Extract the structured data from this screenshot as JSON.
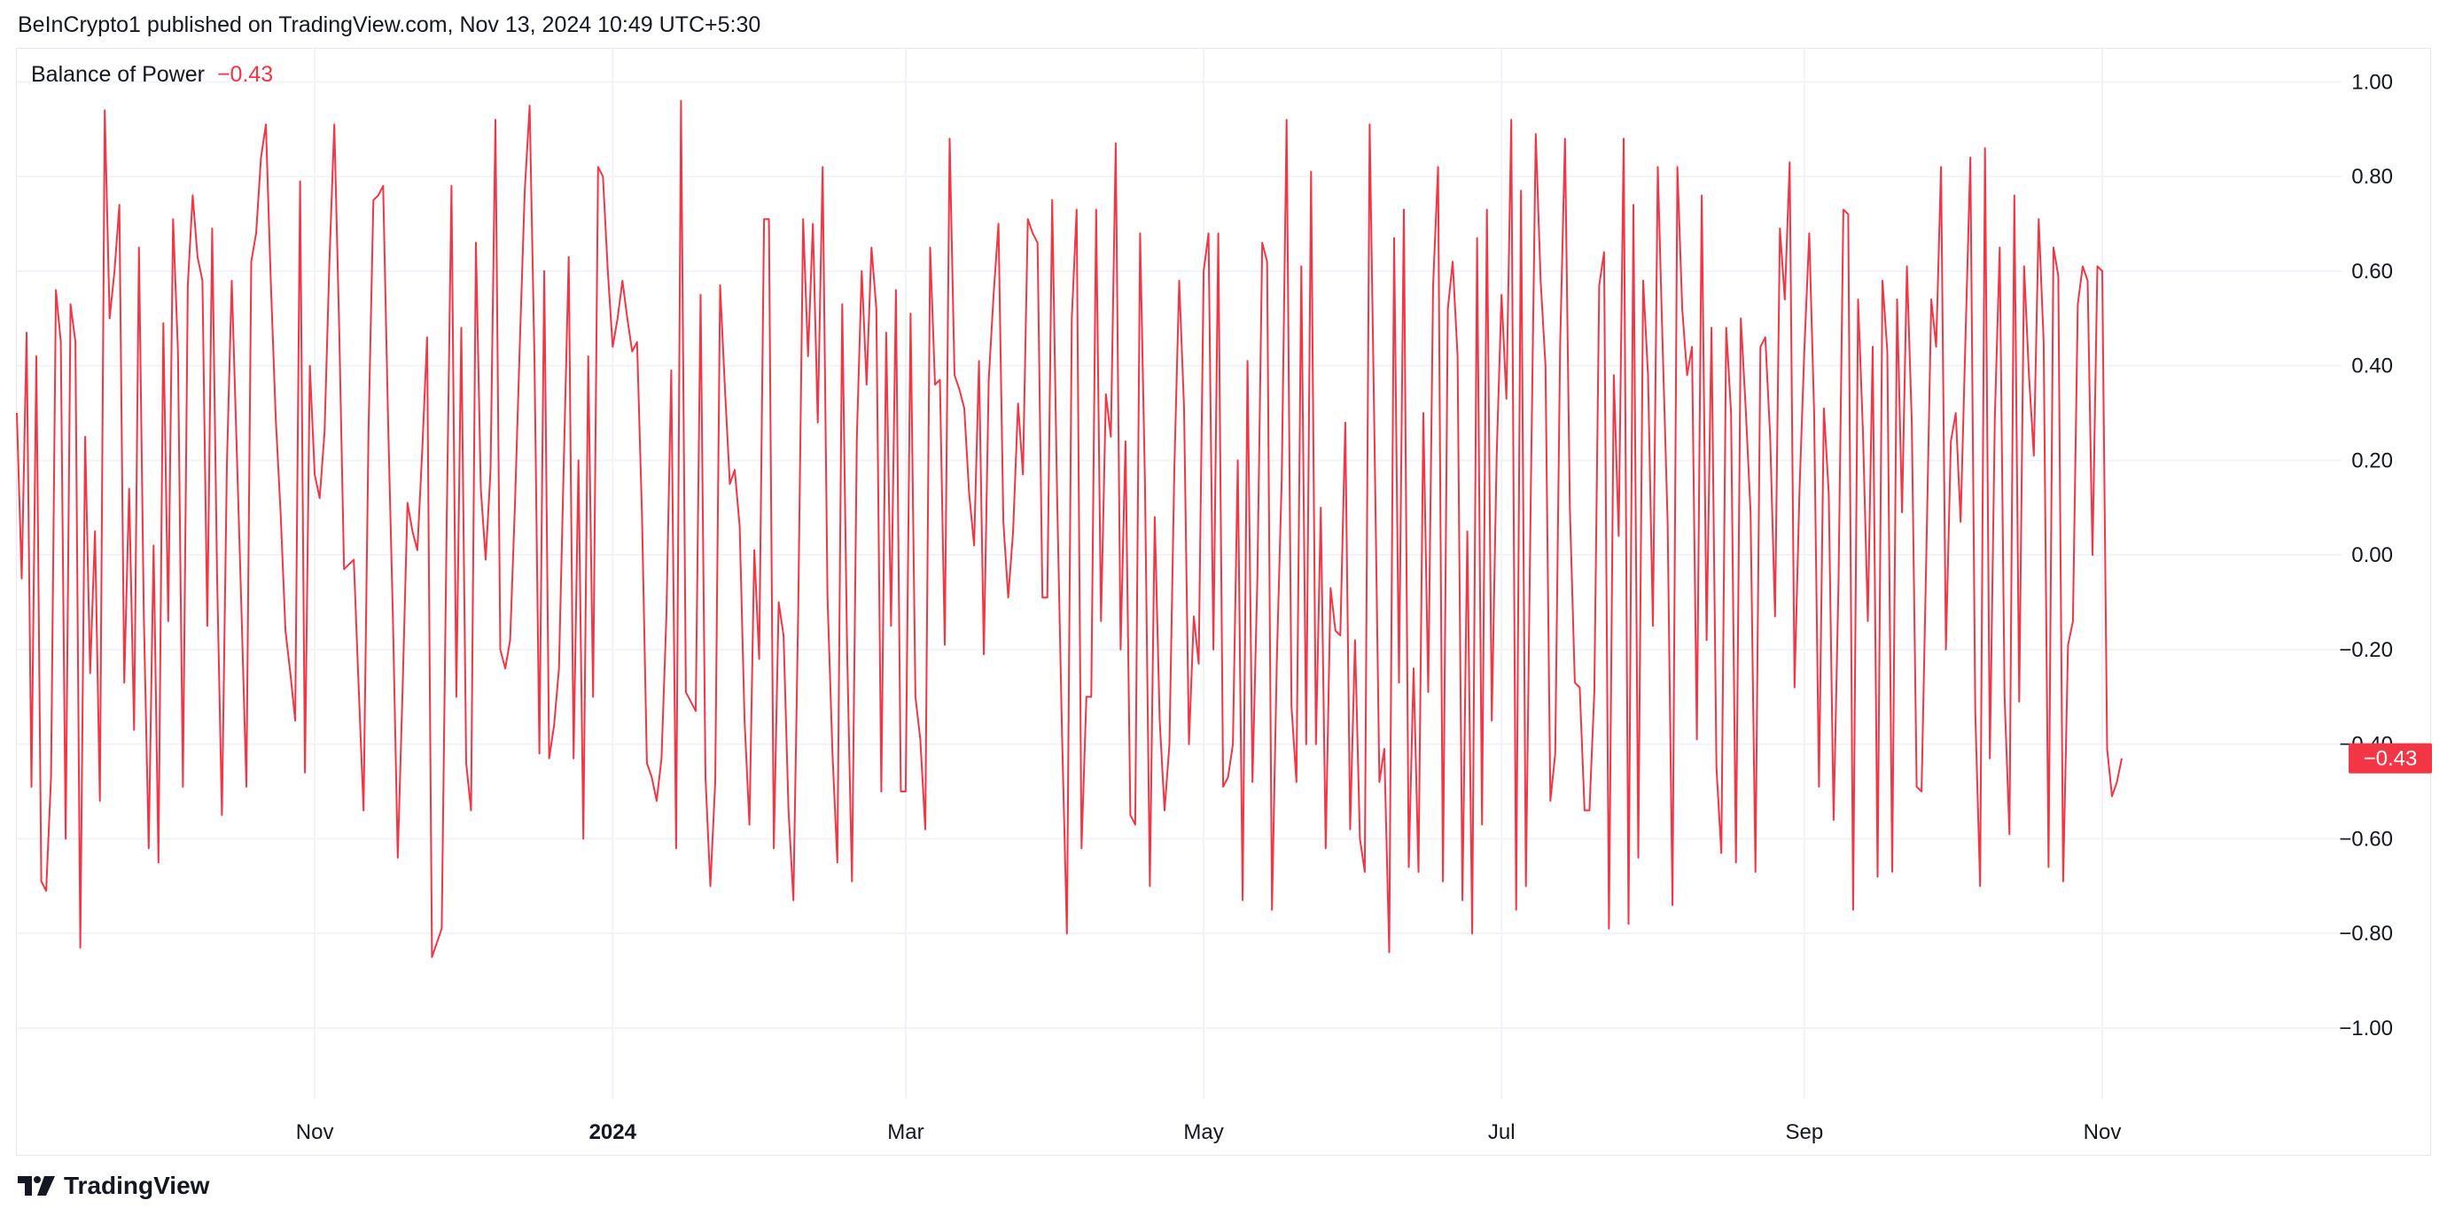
{
  "header": {
    "publisher_line": "BeInCrypto1 published on TradingView.com, Nov 13, 2024 10:49 UTC+5:30"
  },
  "indicator": {
    "name": "Balance of Power",
    "value": "−0.43"
  },
  "footer": {
    "brand": "TradingView",
    "logo_icon": "tradingview-logo-icon"
  },
  "colors": {
    "series": "#f23645",
    "grid": "#f0f3fa",
    "axis_text": "#131722",
    "badge_bg": "#f23645"
  },
  "chart_data": {
    "type": "line",
    "title": "Balance of Power",
    "ylim": [
      -1.15,
      1.07
    ],
    "y_ticks": [
      1.0,
      0.8,
      0.6,
      0.4,
      0.2,
      0.0,
      -0.2,
      -0.4,
      -0.6,
      -0.8,
      -1.0
    ],
    "y_tick_labels": [
      "1.00",
      "0.80",
      "0.60",
      "0.40",
      "0.20",
      "0.00",
      "−0.20",
      "−0.40",
      "−0.60",
      "−0.80",
      "−1.00"
    ],
    "x_range": [
      "2023-09-01",
      "2024-12-20"
    ],
    "x_ticks": [
      {
        "date": "2023-11-01",
        "label": "Nov",
        "bold": false
      },
      {
        "date": "2024-01-01",
        "label": "2024",
        "bold": true
      },
      {
        "date": "2024-03-01",
        "label": "Mar",
        "bold": false
      },
      {
        "date": "2024-05-01",
        "label": "May",
        "bold": false
      },
      {
        "date": "2024-07-01",
        "label": "Jul",
        "bold": false
      },
      {
        "date": "2024-09-01",
        "label": "Sep",
        "bold": false
      },
      {
        "date": "2024-11-01",
        "label": "Nov",
        "bold": false
      }
    ],
    "grid": true,
    "last_value_label": "−0.43",
    "series": [
      {
        "start_date": "2023-09-01",
        "step_days": 1,
        "values": [
          0.3,
          -0.05,
          0.47,
          -0.49,
          0.42,
          -0.69,
          -0.71,
          -0.47,
          0.56,
          0.45,
          -0.6,
          0.53,
          0.45,
          -0.83,
          0.25,
          -0.25,
          0.05,
          -0.52,
          0.94,
          0.5,
          0.6,
          0.74,
          -0.27,
          0.14,
          -0.37,
          0.65,
          -0.13,
          -0.62,
          0.02,
          -0.65,
          0.49,
          -0.14,
          0.71,
          0.43,
          -0.49,
          0.57,
          0.76,
          0.63,
          0.58,
          -0.15,
          0.69,
          -0.04,
          -0.55,
          0.19,
          0.58,
          0.23,
          -0.12,
          -0.49,
          0.62,
          0.68,
          0.84,
          0.91,
          0.58,
          0.29,
          0.09,
          -0.16,
          -0.25,
          -0.35,
          0.79,
          -0.46,
          0.4,
          0.17,
          0.12,
          0.26,
          0.62,
          0.91,
          0.48,
          -0.03,
          -0.02,
          -0.01,
          -0.28,
          -0.54,
          0.26,
          0.75,
          0.76,
          0.78,
          0.29,
          -0.13,
          -0.64,
          -0.28,
          0.11,
          0.05,
          0.01,
          0.22,
          0.46,
          -0.85,
          -0.82,
          -0.79,
          0.05,
          0.78,
          -0.3,
          0.48,
          -0.44,
          -0.54,
          0.66,
          0.14,
          -0.01,
          0.18,
          0.92,
          -0.2,
          -0.24,
          -0.18,
          0.11,
          0.45,
          0.77,
          0.95,
          0.41,
          -0.42,
          0.6,
          -0.43,
          -0.36,
          -0.24,
          0.2,
          0.63,
          -0.43,
          0.2,
          -0.6,
          0.42,
          -0.3,
          0.82,
          0.8,
          0.6,
          0.44,
          0.5,
          0.58,
          0.5,
          0.43,
          0.45,
          0.09,
          -0.44,
          -0.47,
          -0.52,
          -0.43,
          -0.13,
          0.39,
          -0.62,
          0.96,
          -0.29,
          -0.31,
          -0.33,
          0.55,
          -0.47,
          -0.7,
          -0.48,
          0.57,
          0.35,
          0.15,
          0.18,
          0.06,
          -0.35,
          -0.57,
          0.01,
          -0.22,
          0.71,
          0.71,
          -0.62,
          -0.1,
          -0.17,
          -0.54,
          -0.73,
          -0.11,
          0.71,
          0.42,
          0.7,
          0.28,
          0.82,
          -0.09,
          -0.42,
          -0.65,
          0.53,
          -0.2,
          -0.69,
          0.25,
          0.6,
          0.36,
          0.65,
          0.52,
          -0.5,
          0.47,
          -0.15,
          0.56,
          -0.5,
          -0.5,
          0.51,
          -0.3,
          -0.39,
          -0.58,
          0.65,
          0.36,
          0.37,
          -0.19,
          0.88,
          0.38,
          0.35,
          0.31,
          0.13,
          0.02,
          0.41,
          -0.21,
          0.37,
          0.55,
          0.7,
          0.07,
          -0.09,
          0.05,
          0.32,
          0.17,
          0.71,
          0.68,
          0.66,
          -0.09,
          -0.09,
          0.75,
          0.13,
          -0.37,
          -0.8,
          0.5,
          0.73,
          -0.62,
          -0.3,
          -0.3,
          0.73,
          -0.14,
          0.34,
          0.25,
          0.87,
          -0.2,
          0.24,
          -0.55,
          -0.57,
          0.68,
          0.15,
          -0.7,
          0.08,
          -0.35,
          -0.54,
          -0.4,
          0.18,
          0.58,
          0.31,
          -0.4,
          -0.13,
          -0.23,
          0.6,
          0.68,
          -0.2,
          0.68,
          -0.49,
          -0.47,
          -0.4,
          0.2,
          -0.73,
          0.41,
          -0.48,
          -0.05,
          0.66,
          0.62,
          -0.75,
          -0.22,
          0.16,
          0.92,
          -0.32,
          -0.48,
          0.61,
          -0.4,
          0.81,
          -0.4,
          0.1,
          -0.62,
          -0.07,
          -0.16,
          -0.17,
          0.28,
          -0.58,
          -0.18,
          -0.6,
          -0.67,
          0.91,
          0.24,
          -0.48,
          -0.41,
          -0.84,
          0.67,
          -0.27,
          0.73,
          -0.66,
          -0.24,
          -0.67,
          0.3,
          -0.29,
          0.57,
          0.82,
          -0.69,
          0.52,
          0.62,
          0.42,
          -0.73,
          0.05,
          -0.8,
          0.67,
          -0.57,
          0.73,
          -0.35,
          0.21,
          0.55,
          0.33,
          0.92,
          -0.75,
          0.77,
          -0.7,
          0.14,
          0.89,
          0.58,
          0.4,
          -0.52,
          -0.42,
          0.44,
          0.88,
          0.1,
          -0.27,
          -0.28,
          -0.54,
          -0.54,
          -0.29,
          0.57,
          0.64,
          -0.79,
          0.38,
          0.04,
          0.88,
          -0.78,
          0.74,
          -0.64,
          0.58,
          0.38,
          -0.15,
          0.82,
          0.44,
          0.07,
          -0.74,
          0.82,
          0.52,
          0.38,
          0.44,
          -0.39,
          0.76,
          -0.18,
          0.48,
          -0.45,
          -0.63,
          0.48,
          0.3,
          -0.65,
          0.5,
          0.31,
          0.09,
          -0.67,
          0.44,
          0.46,
          0.25,
          -0.13,
          0.69,
          0.54,
          0.83,
          -0.28,
          0.13,
          0.43,
          0.68,
          0.3,
          -0.49,
          0.31,
          0.13,
          -0.56,
          -0.06,
          0.73,
          0.72,
          -0.75,
          0.54,
          0.26,
          -0.14,
          0.44,
          -0.68,
          0.58,
          0.43,
          -0.67,
          0.54,
          0.09,
          0.61,
          0.28,
          -0.49,
          -0.5,
          0.01,
          0.54,
          0.44,
          0.82,
          -0.2,
          0.24,
          0.3,
          0.07,
          0.46,
          0.84,
          -0.33,
          -0.7,
          0.86,
          -0.43,
          0.29,
          0.65,
          -0.3,
          -0.59,
          0.76,
          -0.31,
          0.61,
          0.38,
          0.21,
          0.71,
          0.45,
          -0.66,
          0.65,
          0.59,
          -0.69,
          -0.19,
          -0.14,
          0.53,
          0.61,
          0.58,
          0.0,
          0.61,
          0.6,
          -0.41,
          -0.51,
          -0.48,
          -0.43
        ]
      }
    ]
  }
}
